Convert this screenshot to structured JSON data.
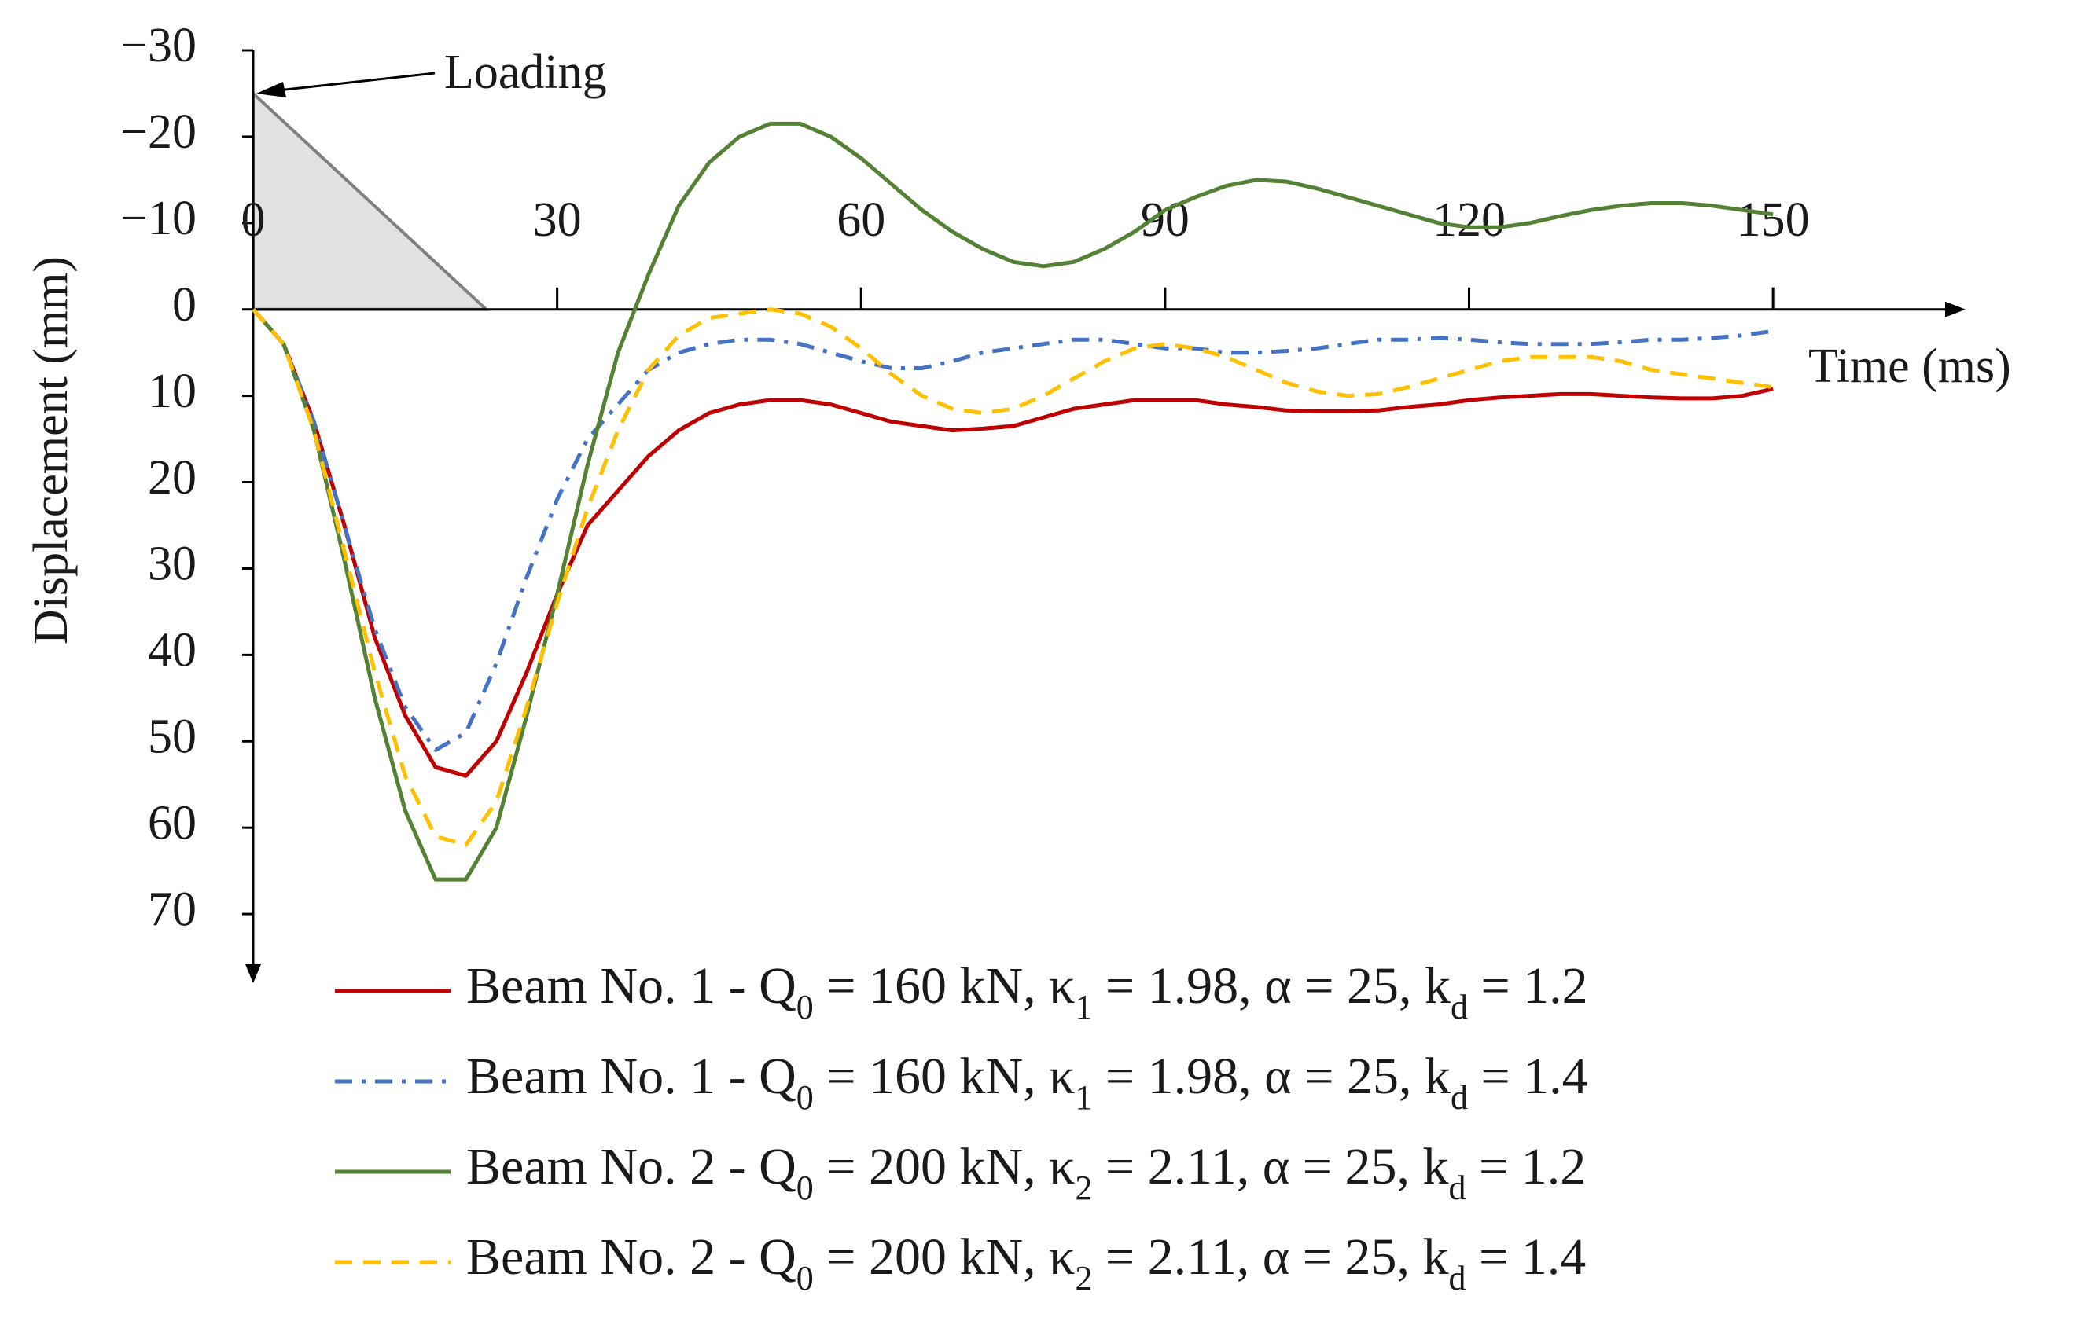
{
  "chart_data": {
    "type": "line",
    "y_label": "Displacement (mm)",
    "x_label": "Time (ms)",
    "annotation": {
      "text": "Loading",
      "triangle": {
        "x": [
          0,
          0,
          23
        ],
        "y": [
          -25,
          0,
          0
        ]
      }
    },
    "x": [
      0,
      3,
      6,
      9,
      12,
      15,
      18,
      21,
      24,
      27,
      30,
      33,
      36,
      39,
      42,
      45,
      48,
      51,
      54,
      57,
      60,
      63,
      66,
      69,
      72,
      75,
      78,
      81,
      84,
      87,
      90,
      93,
      96,
      99,
      102,
      105,
      108,
      111,
      114,
      117,
      120,
      123,
      126,
      129,
      132,
      135,
      138,
      141,
      144,
      147,
      150
    ],
    "series": [
      {
        "name": "Beam No. 1 - Q0 = 160 kN, κ1 = 1.98, α = 25, kd = 1.2",
        "color": "#c00000",
        "dash": "solid",
        "values": [
          0,
          4,
          13,
          25,
          38,
          47,
          53,
          54,
          50,
          42,
          33,
          25,
          21,
          17,
          14,
          12,
          11,
          10.5,
          10.5,
          11,
          12,
          13,
          13.5,
          14,
          13.8,
          13.5,
          12.5,
          11.5,
          11,
          10.5,
          10.5,
          10.5,
          11,
          11.3,
          11.7,
          11.8,
          11.8,
          11.7,
          11.3,
          11,
          10.5,
          10.2,
          10,
          9.8,
          9.8,
          10,
          10.2,
          10.3,
          10.3,
          10,
          9.2
        ]
      },
      {
        "name": "Beam No. 1 - Q0 = 160 kN, κ1 = 1.98, α = 25, kd = 1.4",
        "color": "#4472c4",
        "dash": "dashdot",
        "values": [
          0,
          4,
          13,
          25,
          37,
          46,
          51,
          49,
          41,
          31,
          22,
          15,
          11,
          7,
          5,
          4,
          3.5,
          3.5,
          4,
          5,
          6,
          6.8,
          6.8,
          6,
          5,
          4.5,
          4,
          3.5,
          3.5,
          4,
          4.5,
          4.5,
          5,
          5,
          4.8,
          4.5,
          4,
          3.5,
          3.5,
          3.3,
          3.5,
          3.8,
          4,
          4,
          4,
          3.8,
          3.5,
          3.5,
          3.3,
          3,
          2.5
        ]
      },
      {
        "name": "Beam No. 2 - Q0 = 200 kN, κ2 = 2.11, α = 25, kd = 1.2",
        "color": "#548235",
        "dash": "solid",
        "values": [
          0,
          4,
          14,
          29,
          45,
          58,
          66,
          66,
          60,
          47,
          33,
          18,
          5,
          -4,
          -12,
          -17,
          -20,
          -21.5,
          -21.5,
          -20,
          -17.5,
          -14.5,
          -11.5,
          -9,
          -7,
          -5.5,
          -5,
          -5.5,
          -7,
          -9,
          -11.5,
          -13,
          -14.3,
          -15,
          -14.8,
          -14,
          -13,
          -12,
          -11,
          -10,
          -9.5,
          -9.5,
          -10,
          -10.8,
          -11.5,
          -12,
          -12.3,
          -12.3,
          -12,
          -11.5,
          -11
        ]
      },
      {
        "name": "Beam No. 2 - Q0 = 200 kN, κ2 = 2.11, α = 25, kd = 1.4",
        "color": "#ffc000",
        "dash": "dashed",
        "values": [
          0,
          4,
          14,
          28,
          42,
          54,
          61,
          62,
          57,
          46,
          34,
          23,
          14,
          7,
          3,
          1,
          0.5,
          0,
          0.5,
          2,
          4.5,
          7.5,
          10,
          11.5,
          12,
          11.5,
          10,
          8,
          6,
          4.5,
          4,
          4.5,
          5.5,
          7,
          8.5,
          9.5,
          10,
          9.8,
          9,
          8,
          7,
          6,
          5.5,
          5.5,
          5.5,
          6,
          7,
          7.5,
          8,
          8.5,
          9
        ]
      }
    ],
    "xlim": [
      0,
      169
    ],
    "xticks": [
      0,
      30,
      60,
      90,
      120,
      150
    ],
    "ylim": [
      -30,
      78
    ],
    "y_inverted": true,
    "yticks": [
      {
        "value": -30,
        "label": "−30"
      },
      {
        "value": -20,
        "label": "−20"
      },
      {
        "value": -10,
        "label": "−10"
      },
      0,
      10,
      20,
      30,
      40,
      50,
      60,
      70
    ],
    "legend": "bottom",
    "grid": false
  }
}
